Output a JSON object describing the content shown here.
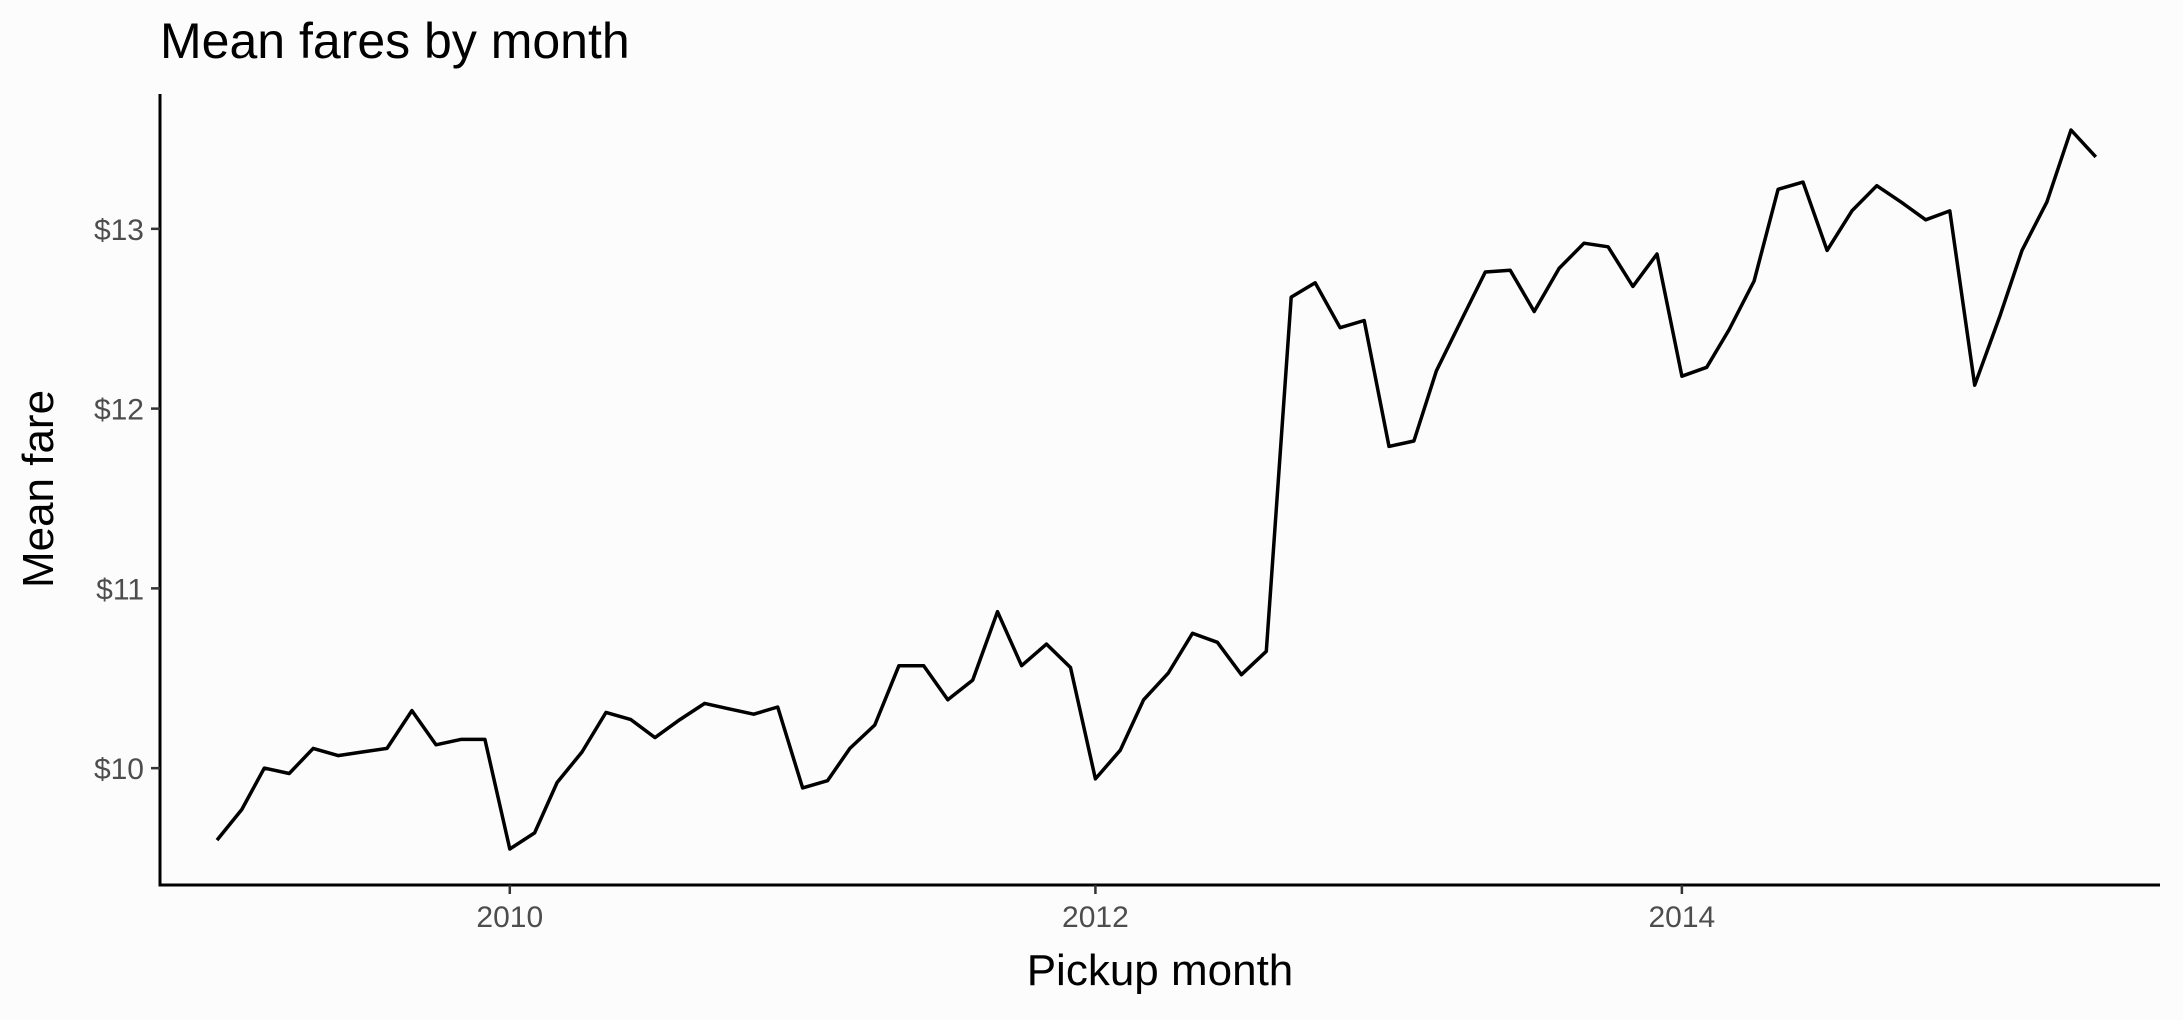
{
  "chart_data": {
    "type": "line",
    "title": "Mean fares by month",
    "xlabel": "Pickup month",
    "ylabel": "Mean fare",
    "x_ticks": [
      {
        "value": "2010-01-01",
        "label": "2010"
      },
      {
        "value": "2012-01-01",
        "label": "2012"
      },
      {
        "value": "2014-01-01",
        "label": "2014"
      }
    ],
    "y_ticks": [
      {
        "value": 10,
        "label": "$10"
      },
      {
        "value": 11,
        "label": "$11"
      },
      {
        "value": 12,
        "label": "$12"
      },
      {
        "value": 13,
        "label": "$13"
      }
    ],
    "xlim": [
      "2008-10-22",
      "2015-08-20"
    ],
    "ylim": [
      9.35,
      13.75
    ],
    "grid": false,
    "line_color": "#000000",
    "series": [
      {
        "x": [
          "2009-01",
          "2009-02",
          "2009-03",
          "2009-04",
          "2009-05",
          "2009-06",
          "2009-07",
          "2009-08",
          "2009-09",
          "2009-10",
          "2009-11",
          "2009-12",
          "2010-01",
          "2010-02",
          "2010-03",
          "2010-04",
          "2010-05",
          "2010-06",
          "2010-07",
          "2010-08",
          "2010-09",
          "2010-10",
          "2010-11",
          "2010-12",
          "2011-01",
          "2011-02",
          "2011-03",
          "2011-04",
          "2011-05",
          "2011-06",
          "2011-07",
          "2011-08",
          "2011-09",
          "2011-10",
          "2011-11",
          "2011-12",
          "2012-01",
          "2012-02",
          "2012-03",
          "2012-04",
          "2012-05",
          "2012-06",
          "2012-07",
          "2012-08",
          "2012-09",
          "2012-10",
          "2012-11",
          "2012-12",
          "2013-01",
          "2013-02",
          "2013-03",
          "2013-04",
          "2013-05",
          "2013-06",
          "2013-07",
          "2013-08",
          "2013-09",
          "2013-10",
          "2013-11",
          "2013-12",
          "2014-01",
          "2014-02",
          "2014-03",
          "2014-04",
          "2014-05",
          "2014-06",
          "2014-07",
          "2014-08",
          "2014-09",
          "2014-10",
          "2014-11",
          "2014-12",
          "2015-01",
          "2015-02",
          "2015-03",
          "2015-04",
          "2015-05",
          "2015-06"
        ],
        "y": [
          9.6,
          9.77,
          10.0,
          9.97,
          10.11,
          10.07,
          10.09,
          10.11,
          10.32,
          10.13,
          10.16,
          10.16,
          9.55,
          9.64,
          9.92,
          10.09,
          10.31,
          10.27,
          10.17,
          10.27,
          10.36,
          10.33,
          10.3,
          10.34,
          9.89,
          9.93,
          10.11,
          10.24,
          10.57,
          10.57,
          10.38,
          10.49,
          10.87,
          10.57,
          10.69,
          10.56,
          9.94,
          10.1,
          10.38,
          10.53,
          10.75,
          10.7,
          10.52,
          10.65,
          12.62,
          12.7,
          12.45,
          12.49,
          11.79,
          11.82,
          12.21,
          12.49,
          12.76,
          12.77,
          12.54,
          12.78,
          12.92,
          12.9,
          12.68,
          12.86,
          12.18,
          12.23,
          12.44,
          12.71,
          13.22,
          13.26,
          12.88,
          13.1,
          13.24,
          13.15,
          13.05,
          13.1,
          12.13,
          12.51,
          12.88,
          13.15,
          13.55,
          13.4
        ]
      }
    ]
  }
}
